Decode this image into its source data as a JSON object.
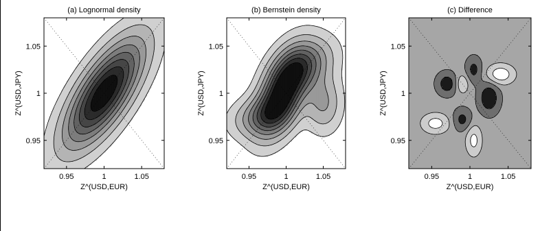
{
  "chart_data": [
    {
      "type": "contour",
      "title": "(a) Lognormal density",
      "xlabel": "Z^(USD,EUR)",
      "ylabel": "Z^(USD,JPY)",
      "xlim": [
        0.92,
        1.08
      ],
      "ylim": [
        0.92,
        1.08
      ],
      "xticks": [
        "0.95",
        "1",
        "1.05"
      ],
      "yticks": [
        "0.95",
        "1",
        "1.05"
      ],
      "grid": "dotted",
      "fill": "grayscale",
      "levels": [
        0.06,
        0.16,
        0.28,
        0.4,
        0.52,
        0.64,
        0.76,
        0.88
      ],
      "components": [
        {
          "weight": 1.0,
          "mu": [
            1.0,
            1.0
          ],
          "sd": [
            0.035,
            0.038
          ],
          "rho": 0.72
        }
      ]
    },
    {
      "type": "contour",
      "title": "(b) Bernstein density",
      "xlabel": "Z^(USD,EUR)",
      "ylabel": "Z^(USD,JPY)",
      "xlim": [
        0.92,
        1.08
      ],
      "ylim": [
        0.92,
        1.08
      ],
      "xticks": [
        "0.95",
        "1",
        "1.05"
      ],
      "yticks": [
        "0.95",
        "1",
        "1.05"
      ],
      "grid": "dotted",
      "fill": "grayscale",
      "levels": [
        0.06,
        0.16,
        0.28,
        0.4,
        0.52,
        0.64,
        0.76,
        0.88
      ],
      "components": [
        {
          "weight": 1.0,
          "mu": [
            0.995,
            1.0
          ],
          "sd": [
            0.022,
            0.028
          ],
          "rho": 0.5
        },
        {
          "weight": 0.45,
          "mu": [
            1.025,
            1.03
          ],
          "sd": [
            0.025,
            0.018
          ],
          "rho": 0.3
        },
        {
          "weight": 0.35,
          "mu": [
            0.965,
            0.975
          ],
          "sd": [
            0.025,
            0.014
          ],
          "rho": 0.2
        },
        {
          "weight": 0.3,
          "mu": [
            1.05,
            0.99
          ],
          "sd": [
            0.016,
            0.02
          ],
          "rho": 0.0
        }
      ]
    },
    {
      "type": "contour",
      "title": "(c) Difference",
      "xlabel": "Z^(USD,EUR)",
      "ylabel": "Z^(USD,JPY)",
      "xlim": [
        0.92,
        1.08
      ],
      "ylim": [
        0.92,
        1.08
      ],
      "xticks": [
        "0.95",
        "1",
        "1.05"
      ],
      "yticks": [
        "0.95",
        "1",
        "1.05"
      ],
      "grid": "dotted",
      "fill": "grayscale",
      "levels": [
        -0.45,
        -0.15,
        0.1,
        0.4
      ],
      "components": [
        {
          "weight": 0.7,
          "mu": [
            1.025,
            0.995
          ],
          "sd": [
            0.009,
            0.011
          ],
          "rho": 0.0
        },
        {
          "weight": 0.6,
          "mu": [
            0.97,
            1.01
          ],
          "sd": [
            0.009,
            0.008
          ],
          "rho": 0.0
        },
        {
          "weight": 0.5,
          "mu": [
            1.005,
            1.025
          ],
          "sd": [
            0.007,
            0.009
          ],
          "rho": 0.0
        },
        {
          "weight": 0.5,
          "mu": [
            0.99,
            0.972
          ],
          "sd": [
            0.008,
            0.008
          ],
          "rho": 0.0
        },
        {
          "weight": -0.7,
          "mu": [
            1.04,
            1.02
          ],
          "sd": [
            0.012,
            0.007
          ],
          "rho": 0.0
        },
        {
          "weight": -0.6,
          "mu": [
            0.955,
            0.968
          ],
          "sd": [
            0.012,
            0.007
          ],
          "rho": 0.0
        },
        {
          "weight": -0.55,
          "mu": [
            1.005,
            0.95
          ],
          "sd": [
            0.007,
            0.011
          ],
          "rho": 0.0
        },
        {
          "weight": -0.45,
          "mu": [
            0.99,
            1.01
          ],
          "sd": [
            0.006,
            0.007
          ],
          "rho": 0.0
        }
      ]
    }
  ]
}
